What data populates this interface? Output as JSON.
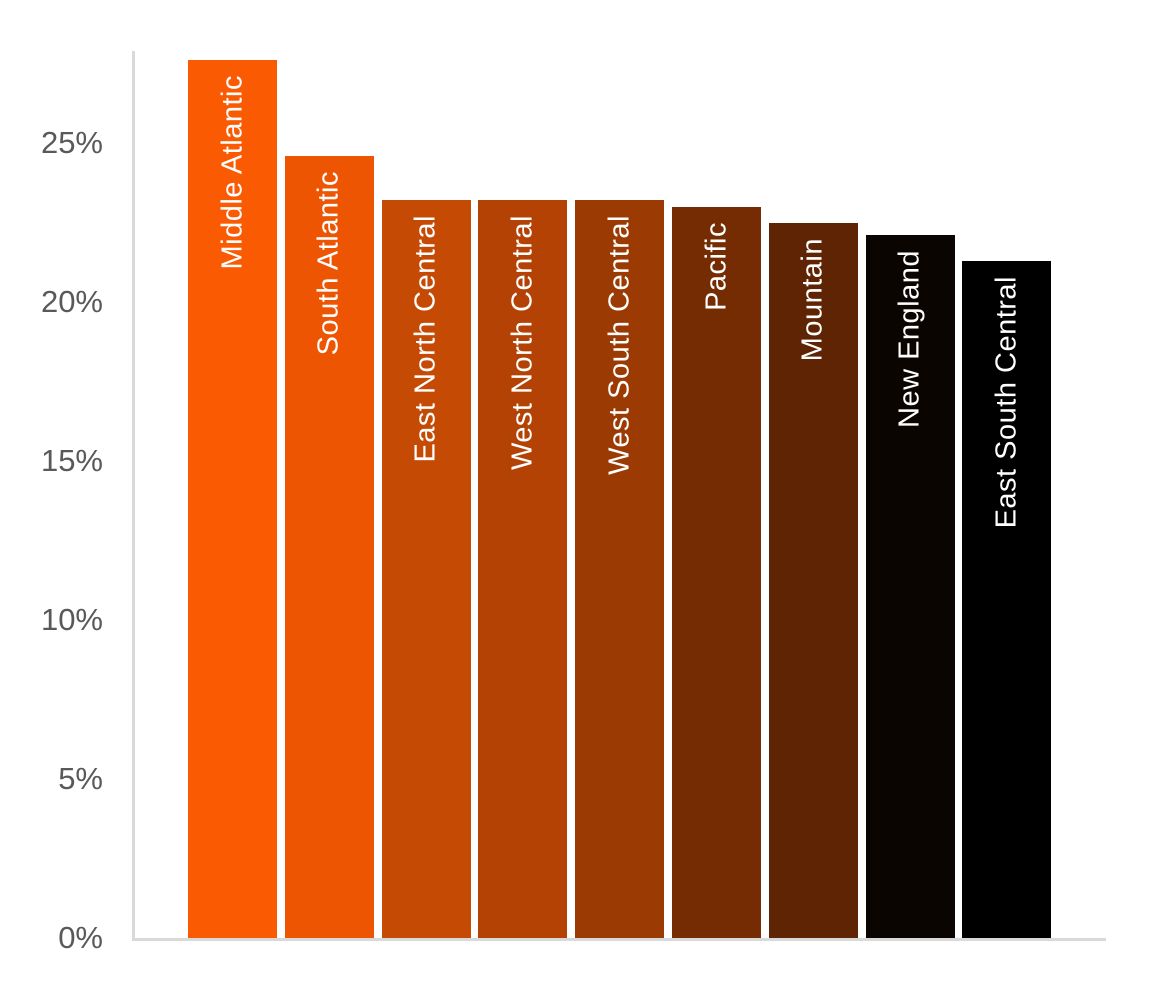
{
  "chart_data": {
    "type": "bar",
    "title": "",
    "xlabel": "",
    "ylabel": "",
    "categories": [
      "Middle Atlantic",
      "South Atlantic",
      "East North Central",
      "West North Central",
      "West South Central",
      "Pacific",
      "Mountain",
      "New England",
      "East South Central"
    ],
    "values": [
      27.6,
      24.6,
      23.2,
      23.2,
      23.2,
      23.0,
      22.5,
      22.1,
      21.3
    ],
    "value_unit": "%",
    "bar_colors": [
      "#FA5B02",
      "#EE5503",
      "#C54A04",
      "#B34204",
      "#9C3A03",
      "#762C02",
      "#5F2403",
      "#0B0502",
      "#000000"
    ],
    "bar_label_color": "#FFFFFF",
    "bar_label_placement": "inside-top-rotated-90",
    "yticks": [
      "0%",
      "5%",
      "10%",
      "15%",
      "20%",
      "25%"
    ],
    "ytick_values": [
      0,
      5,
      10,
      15,
      20,
      25
    ],
    "ylim": [
      0,
      28
    ],
    "grid": false,
    "legend": false,
    "axis": {
      "tick_label_color": "#595959",
      "line_color": "#D9D9D9",
      "background": "#FFFFFF"
    }
  }
}
